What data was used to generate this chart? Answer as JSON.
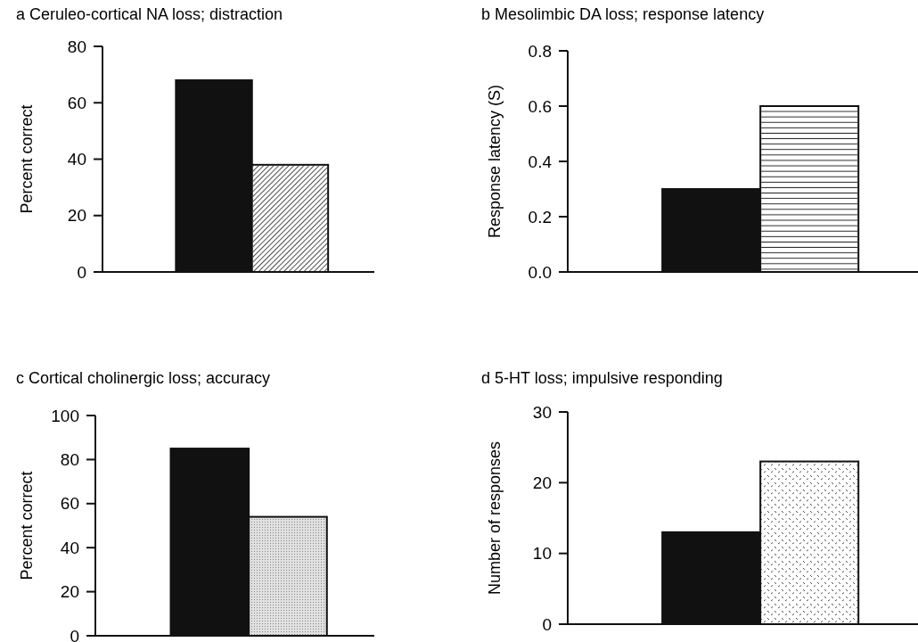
{
  "chart_data": [
    {
      "type": "bar",
      "title": "a  Ceruleo-cortical NA loss; distraction",
      "ylabel": "Percent correct",
      "categories": [
        null,
        null
      ],
      "values": [
        68,
        38
      ],
      "colors": [
        "#111111",
        "#ffffff"
      ],
      "ylim": [
        0,
        80
      ],
      "yticks": [
        0,
        20,
        40,
        60,
        80
      ],
      "grid": false
    },
    {
      "type": "bar",
      "title": "b  Mesolimbic  DA loss; response latency",
      "ylabel": "Response  latency   (S)",
      "categories": [
        null,
        null
      ],
      "values": [
        0.3,
        0.6
      ],
      "colors": [
        "#111111",
        "#ffffff"
      ],
      "ylim": [
        0,
        0.8
      ],
      "yticks": [
        {
          "value": 0,
          "label": "0.0"
        },
        {
          "value": 0.2,
          "label": "0.2"
        },
        {
          "value": 0.4,
          "label": "0.4"
        },
        {
          "value": 0.6,
          "label": "0.6"
        },
        {
          "value": 0.8,
          "label": "0.8"
        }
      ],
      "grid": false
    },
    {
      "type": "bar",
      "title": "c  Cortical cholinergic loss; accuracy",
      "ylabel": "Percent correct",
      "categories": [
        null,
        null
      ],
      "values": [
        85,
        54
      ],
      "colors": [
        "#111111",
        "#e0e0e0"
      ],
      "ylim": [
        0,
        100
      ],
      "yticks": [
        0,
        20,
        40,
        60,
        80,
        100
      ],
      "grid": false
    },
    {
      "type": "bar",
      "title": "d  5-HT loss; impulsive responding",
      "ylabel": "Number of responses",
      "categories": [
        null,
        null
      ],
      "values": [
        13,
        23
      ],
      "colors": [
        "#111111",
        "#ffffff"
      ],
      "ylim": [
        0,
        30
      ],
      "yticks": [
        0,
        10,
        20,
        30
      ],
      "grid": false
    }
  ]
}
